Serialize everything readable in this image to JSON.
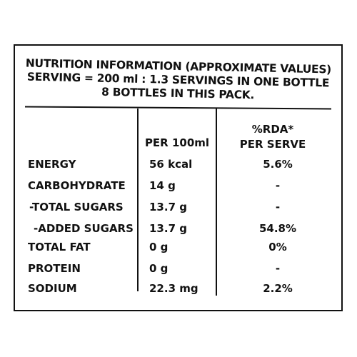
{
  "header": {
    "line1": "NUTRITION INFORMATION (APPROXIMATE VALUES)",
    "line2": "SERVING = 200 ml : 1.3 SERVINGS IN ONE BOTTLE",
    "line3": "8 BOTTLES IN THIS PACK."
  },
  "columns": {
    "per100": "PER 100ml",
    "rda_line1": "%RDA*",
    "rda_line2": "PER SERVE"
  },
  "rows": [
    {
      "nutrient": "ENERGY",
      "per100": "56 kcal",
      "rda": "5.6%"
    },
    {
      "nutrient": "CARBOHYDRATE",
      "per100": "14 g",
      "rda": "-"
    },
    {
      "nutrient": "-TOTAL SUGARS",
      "per100": "13.7 g",
      "rda": "-"
    },
    {
      "nutrient": "-ADDED SUGARS",
      "per100": "13.7 g",
      "rda": "54.8%"
    },
    {
      "nutrient": "TOTAL FAT",
      "per100": "0 g",
      "rda": "0%"
    },
    {
      "nutrient": "PROTEIN",
      "per100": "0 g",
      "rda": "-"
    },
    {
      "nutrient": "SODIUM",
      "per100": "22.3 mg",
      "rda": "2.2%"
    }
  ]
}
